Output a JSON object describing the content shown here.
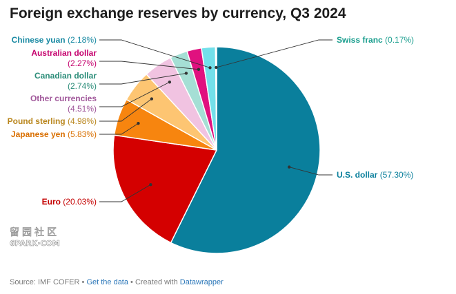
{
  "title": "Foreign exchange reserves by currency, Q3 2024",
  "chart_data": {
    "type": "pie",
    "title": "Foreign exchange reserves by currency, Q3 2024",
    "slices": [
      {
        "label": "U.S. dollar",
        "value": 57.3,
        "value_label": "(57.30%)",
        "color": "#0a7f9c"
      },
      {
        "label": "Euro",
        "value": 20.03,
        "value_label": "(20.03%)",
        "color": "#d40000"
      },
      {
        "label": "Japanese yen",
        "value": 5.83,
        "value_label": "(5.83%)",
        "color": "#f7850f"
      },
      {
        "label": "Pound sterling",
        "value": 4.98,
        "value_label": "(4.98%)",
        "color": "#fdc572"
      },
      {
        "label": "Other currencies",
        "value": 4.51,
        "value_label": "(4.51%)",
        "color": "#f1c3e1"
      },
      {
        "label": "Canadian dollar",
        "value": 2.74,
        "value_label": "(2.74%)",
        "color": "#a5dfd5"
      },
      {
        "label": "Australian dollar",
        "value": 2.27,
        "value_label": "(2.27%)",
        "color": "#e0117f"
      },
      {
        "label": "Chinese yuan",
        "value": 2.18,
        "value_label": "(2.18%)",
        "color": "#73e0ea"
      },
      {
        "label": "Swiss franc",
        "value": 0.17,
        "value_label": "(0.17%)",
        "color": "#1a9e8e"
      }
    ],
    "label_colors": {
      "U.S. dollar": "#0a7f9c",
      "Euro": "#c40000",
      "Japanese yen": "#d96f00",
      "Pound sterling": "#b9861d",
      "Other currencies": "#a0579a",
      "Canadian dollar": "#2a8c78",
      "Australian dollar": "#c5006d",
      "Chinese yuan": "#1a8aa3",
      "Swiss franc": "#1a9e8e"
    },
    "start_angle_deg": 0,
    "direction": "clockwise"
  },
  "footer": {
    "source": "Source: IMF COFER",
    "sep1": " • ",
    "get_data": "Get the data",
    "sep2": " • Created with ",
    "tool": "Datawrapper"
  },
  "watermark": {
    "text": "留园社区",
    "subtext": "6PARK·COM"
  }
}
